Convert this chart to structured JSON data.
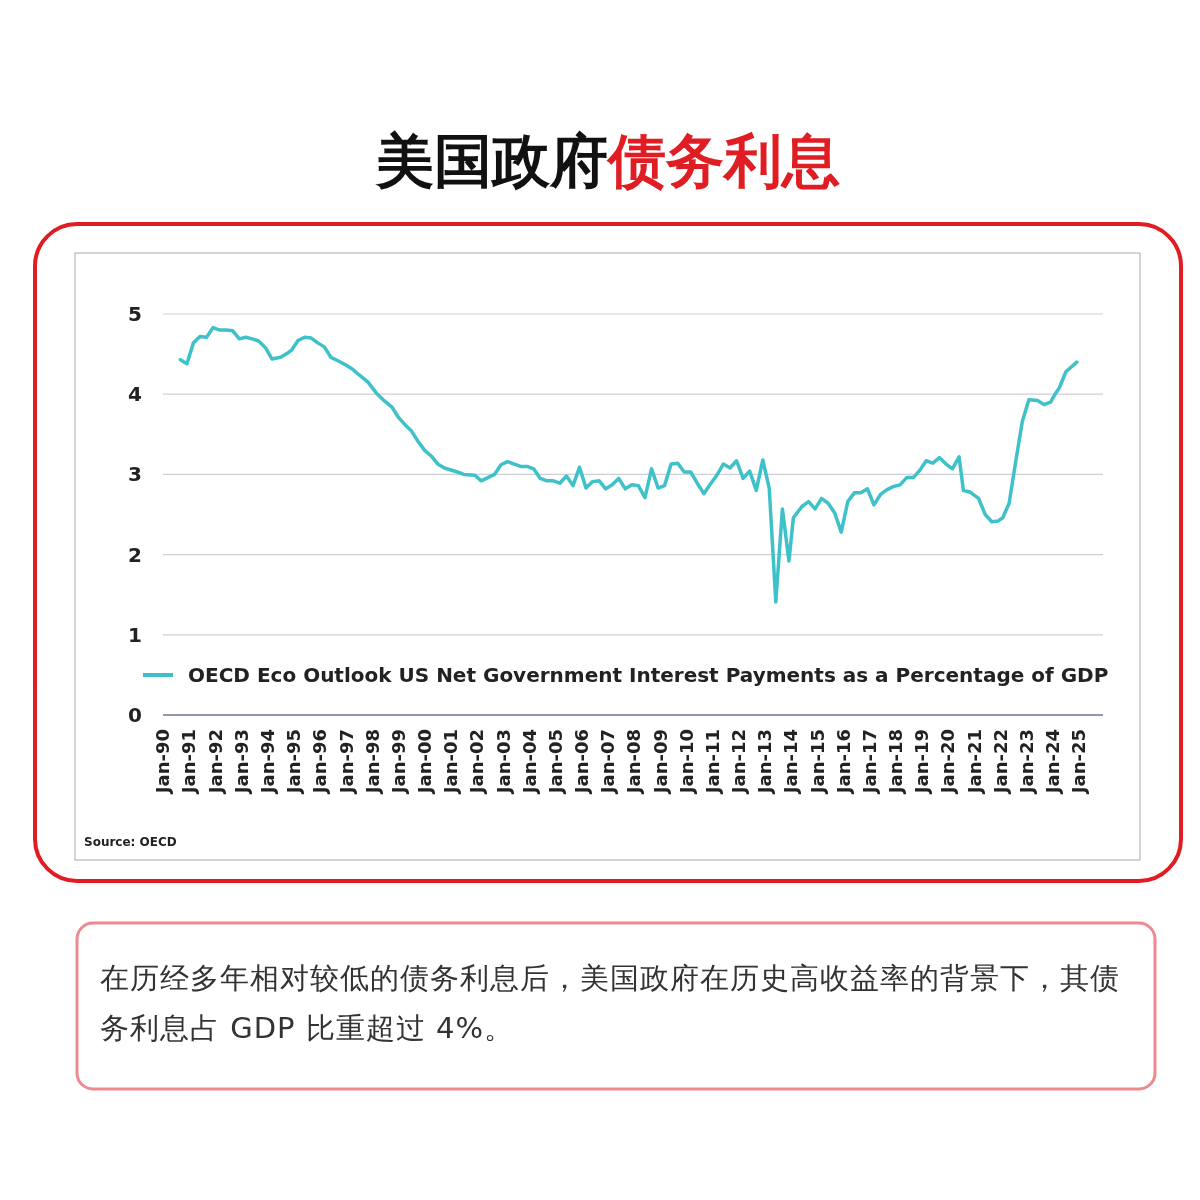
{
  "chart_data": {
    "type": "line",
    "title": "美国政府债务利息",
    "annotations": [
      "Source: OECD",
      "在历经多年相对较低的债务利息后，美国政府在历史高收益率的背景下，其债务利息占 GDP 比重超过 4%。"
    ],
    "xlim": [
      "1990-01",
      "2025-12"
    ],
    "xticks": [
      {
        "value": "1990-01",
        "label": "Jan-90"
      },
      {
        "value": "1991-01",
        "label": "Jan-91"
      },
      {
        "value": "1992-01",
        "label": "Jan-92"
      },
      {
        "value": "1993-01",
        "label": "Jan-93"
      },
      {
        "value": "1994-01",
        "label": "Jan-94"
      },
      {
        "value": "1995-01",
        "label": "Jan-95"
      },
      {
        "value": "1996-01",
        "label": "Jan-96"
      },
      {
        "value": "1997-01",
        "label": "Jan-97"
      },
      {
        "value": "1998-01",
        "label": "Jan-98"
      },
      {
        "value": "1999-01",
        "label": "Jan-99"
      },
      {
        "value": "2000-01",
        "label": "Jan-00"
      },
      {
        "value": "2001-01",
        "label": "Jan-01"
      },
      {
        "value": "2002-01",
        "label": "Jan-02"
      },
      {
        "value": "2003-01",
        "label": "Jan-03"
      },
      {
        "value": "2004-01",
        "label": "Jan-04"
      },
      {
        "value": "2005-01",
        "label": "Jan-05"
      },
      {
        "value": "2006-01",
        "label": "Jan-06"
      },
      {
        "value": "2007-01",
        "label": "Jan-07"
      },
      {
        "value": "2008-01",
        "label": "Jan-08"
      },
      {
        "value": "2009-01",
        "label": "Jan-09"
      },
      {
        "value": "2010-01",
        "label": "Jan-10"
      },
      {
        "value": "2011-01",
        "label": "Jan-11"
      },
      {
        "value": "2012-01",
        "label": "Jan-12"
      },
      {
        "value": "2013-01",
        "label": "Jan-13"
      },
      {
        "value": "2014-01",
        "label": "Jan-14"
      },
      {
        "value": "2015-01",
        "label": "Jan-15"
      },
      {
        "value": "2016-01",
        "label": "Jan-16"
      },
      {
        "value": "2017-01",
        "label": "Jan-17"
      },
      {
        "value": "2018-01",
        "label": "Jan-18"
      },
      {
        "value": "2019-01",
        "label": "Jan-19"
      },
      {
        "value": "2020-01",
        "label": "Jan-20"
      },
      {
        "value": "2021-01",
        "label": "Jan-21"
      },
      {
        "value": "2022-01",
        "label": "Jan-22"
      },
      {
        "value": "2023-01",
        "label": "Jan-23"
      },
      {
        "value": "2024-01",
        "label": "Jan-24"
      },
      {
        "value": "2025-01",
        "label": "Jan-25"
      }
    ],
    "ylim": [
      0,
      5
    ],
    "yticks": [
      0,
      1,
      2,
      3,
      4,
      5
    ],
    "grid": "y",
    "legend": "bottom",
    "x": [
      "1990-09",
      "1990-12",
      "1991-03",
      "1991-06",
      "1991-09",
      "1991-12",
      "1992-03",
      "1992-06",
      "1992-09",
      "1992-12",
      "1993-03",
      "1993-06",
      "1993-09",
      "1993-12",
      "1994-03",
      "1994-07",
      "1994-10",
      "1994-12",
      "1995-03",
      "1995-06",
      "1995-09",
      "1995-12",
      "1996-03",
      "1996-06",
      "1996-09",
      "1997-01",
      "1997-04",
      "1997-07",
      "1997-11",
      "1998-03",
      "1998-06",
      "1998-10",
      "1999-01",
      "1999-04",
      "1999-07",
      "1999-10",
      "2000-01",
      "2000-04",
      "2000-07",
      "2000-10",
      "2001-04",
      "2001-07",
      "2001-12",
      "2002-03",
      "2002-09",
      "2002-12",
      "2003-03",
      "2003-09",
      "2003-12",
      "2004-03",
      "2004-06",
      "2004-09",
      "2004-12",
      "2005-03",
      "2005-06",
      "2005-09",
      "2005-12",
      "2006-03",
      "2006-06",
      "2006-09",
      "2006-12",
      "2007-03",
      "2007-06",
      "2007-09",
      "2007-12",
      "2008-03",
      "2008-06",
      "2008-09",
      "2008-12",
      "2009-03",
      "2009-06",
      "2009-09",
      "2009-12",
      "2010-03",
      "2010-06",
      "2010-09",
      "2010-12",
      "2011-03",
      "2011-06",
      "2011-09",
      "2011-12",
      "2012-03",
      "2012-06",
      "2012-09",
      "2012-12",
      "2013-03",
      "2013-06",
      "2013-09",
      "2013-12",
      "2014-02",
      "2014-06",
      "2014-09",
      "2014-12",
      "2015-03",
      "2015-06",
      "2015-09",
      "2015-12",
      "2016-03",
      "2016-06",
      "2016-09",
      "2016-12",
      "2017-03",
      "2017-06",
      "2017-09",
      "2017-12",
      "2018-03",
      "2018-06",
      "2018-09",
      "2018-12",
      "2019-03",
      "2019-06",
      "2019-09",
      "2019-12",
      "2020-03",
      "2020-06",
      "2020-08",
      "2020-11",
      "2021-03",
      "2021-06",
      "2021-09",
      "2021-12",
      "2022-02",
      "2022-05",
      "2022-08",
      "2022-11",
      "2023-02",
      "2023-06",
      "2023-09",
      "2023-12",
      "2024-02",
      "2024-04",
      "2024-07",
      "2024-12"
    ],
    "series": [
      {
        "name": "OECD Eco Outlook US Net Government Interest Payments as a Percentage of GDP",
        "color": "#3ec1c9",
        "values": [
          4.43,
          4.38,
          4.64,
          4.72,
          4.71,
          4.83,
          4.8,
          4.8,
          4.79,
          4.69,
          4.71,
          4.69,
          4.66,
          4.58,
          4.44,
          4.46,
          4.51,
          4.55,
          4.67,
          4.71,
          4.7,
          4.64,
          4.59,
          4.46,
          4.42,
          4.36,
          4.31,
          4.24,
          4.15,
          4.01,
          3.93,
          3.84,
          3.71,
          3.62,
          3.54,
          3.41,
          3.3,
          3.23,
          3.13,
          3.08,
          3.03,
          3.0,
          2.99,
          2.92,
          3.0,
          3.12,
          3.16,
          3.1,
          3.1,
          3.07,
          2.95,
          2.92,
          2.92,
          2.89,
          2.98,
          2.86,
          3.09,
          2.83,
          2.91,
          2.92,
          2.82,
          2.87,
          2.95,
          2.82,
          2.87,
          2.86,
          2.71,
          3.07,
          2.83,
          2.86,
          3.13,
          3.14,
          3.03,
          3.03,
          2.89,
          2.76,
          2.88,
          2.99,
          3.13,
          3.08,
          3.17,
          2.95,
          3.04,
          2.8,
          3.18,
          2.83,
          1.41,
          2.57,
          1.92,
          2.46,
          2.6,
          2.66,
          2.57,
          2.7,
          2.64,
          2.52,
          2.28,
          2.66,
          2.77,
          2.77,
          2.82,
          2.62,
          2.75,
          2.81,
          2.85,
          2.87,
          2.96,
          2.96,
          3.05,
          3.17,
          3.14,
          3.21,
          3.13,
          3.07,
          3.22,
          2.8,
          2.78,
          2.7,
          2.5,
          2.41,
          2.42,
          2.46,
          2.64,
          3.16,
          3.66,
          3.93,
          3.92,
          3.87,
          3.9,
          4.0,
          4.08,
          4.28,
          4.4
        ]
      }
    ]
  }
}
